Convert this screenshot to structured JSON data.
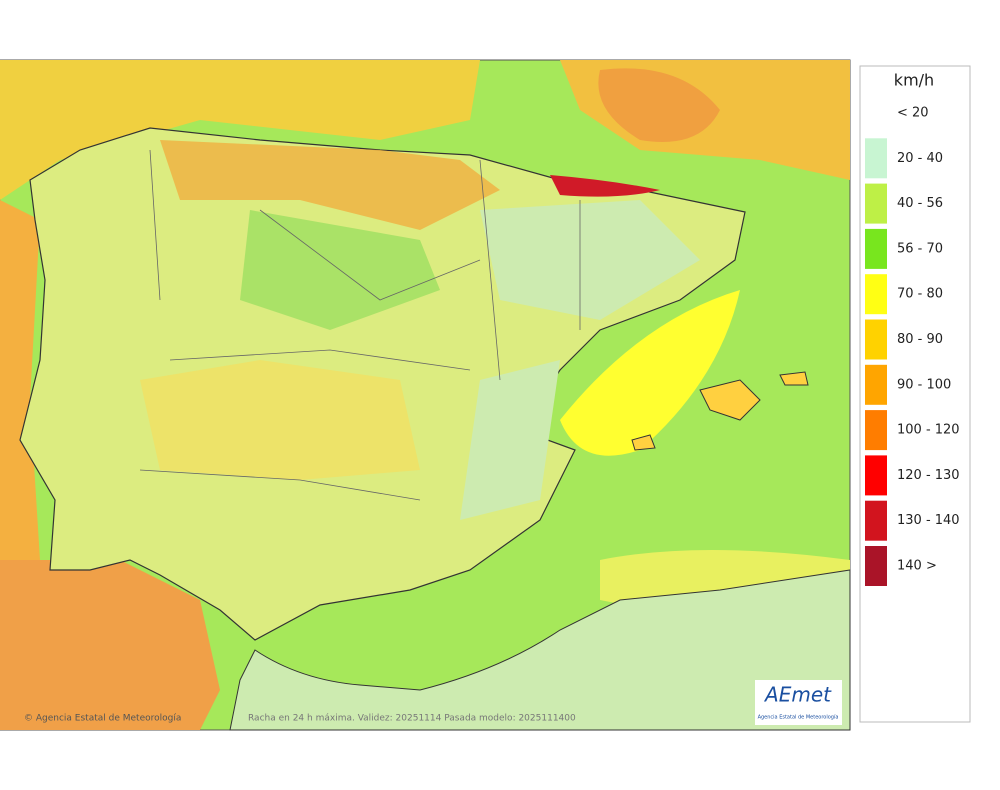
{
  "map": {
    "caption": "Racha en 24 h máxima. Validez: 20251114 Pasada modelo: 2025111400",
    "credit": "© Agencia Estatal de Meteorología",
    "logo": {
      "name": "AEmet",
      "subtitle": "Agencia Estatal de Meteorología"
    }
  },
  "legend": {
    "title": "km/h",
    "items": [
      {
        "label": "< 20",
        "color": "#ffffff"
      },
      {
        "label": "20 - 40",
        "color": "#c8f5d2"
      },
      {
        "label": "40 - 56",
        "color": "#bef046"
      },
      {
        "label": "56 - 70",
        "color": "#78e61e"
      },
      {
        "label": "70 - 80",
        "color": "#ffff14"
      },
      {
        "label": "80 - 90",
        "color": "#ffd200"
      },
      {
        "label": "90 - 100",
        "color": "#ffa500"
      },
      {
        "label": "100 - 120",
        "color": "#ff7d00"
      },
      {
        "label": "120 - 130",
        "color": "#ff0000"
      },
      {
        "label": "130 - 140",
        "color": "#d2141e"
      },
      {
        "label": "140 >",
        "color": "#aa1428"
      }
    ]
  }
}
